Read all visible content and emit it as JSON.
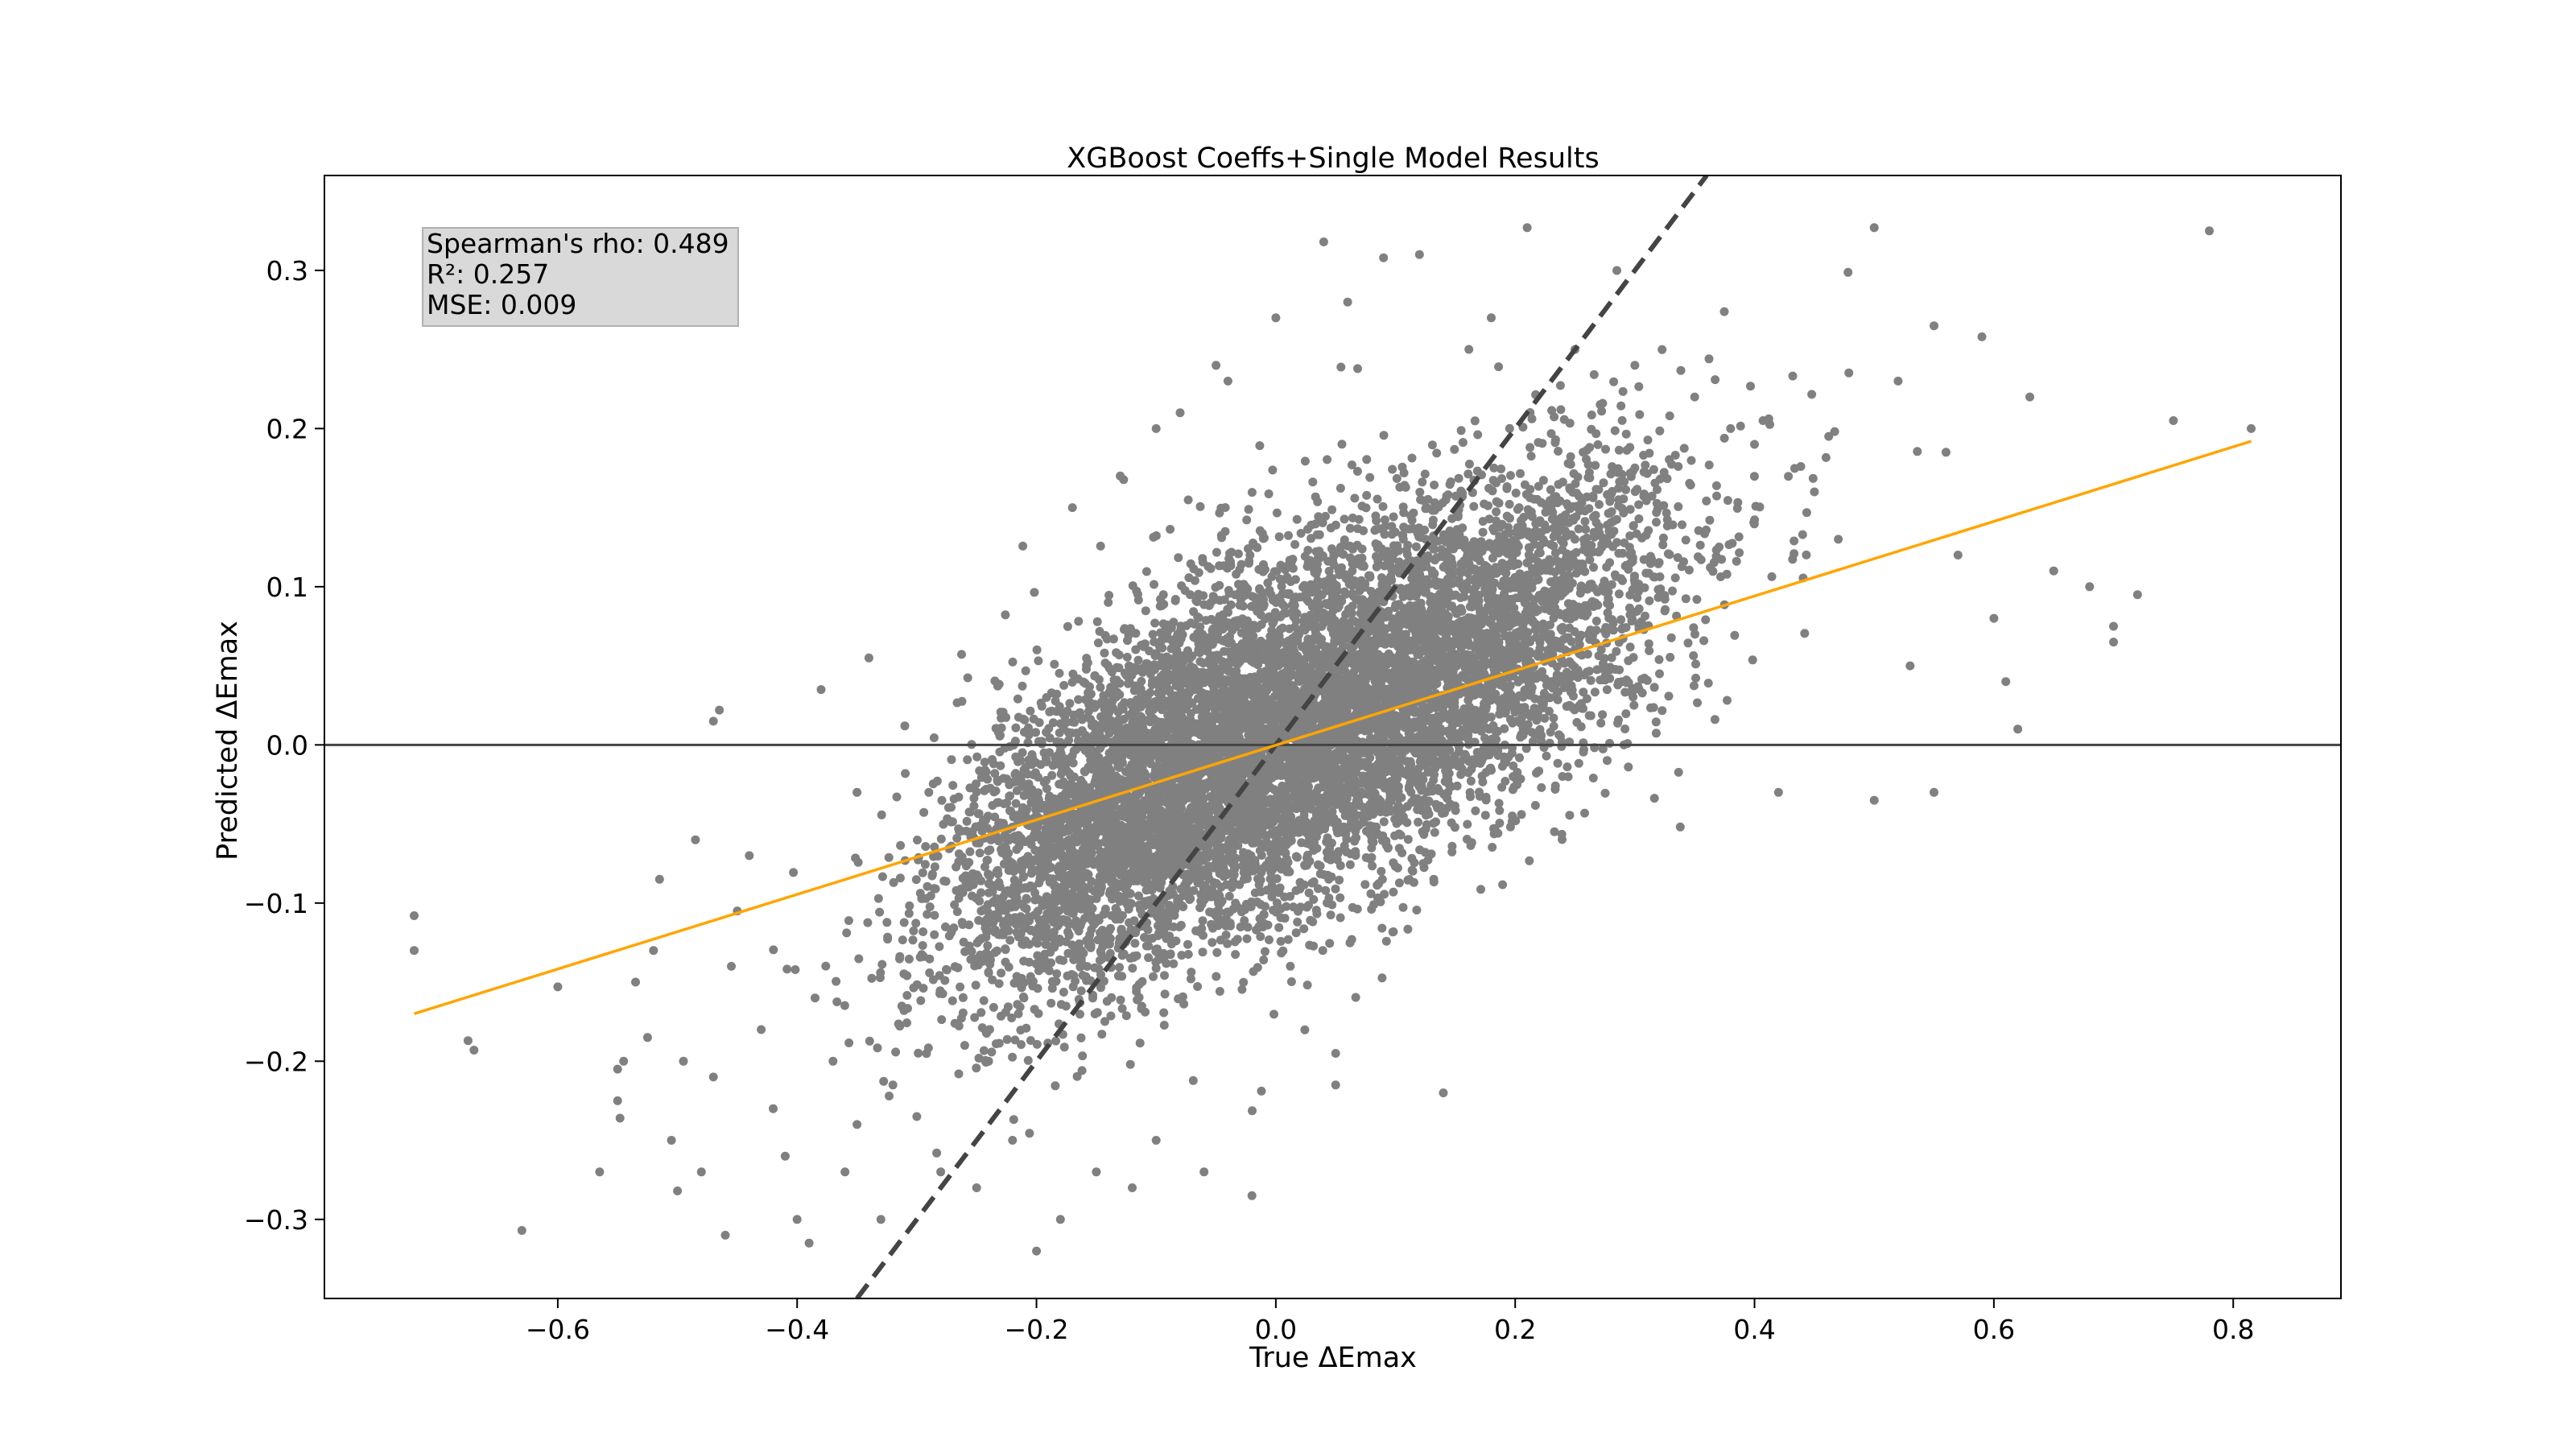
{
  "chart_data": {
    "type": "scatter",
    "title": "XGBoost Coeffs+Single Model Results",
    "xlabel": "True ΔEmax",
    "ylabel": "Predicted ΔEmax",
    "xlim": [
      -0.795,
      0.89
    ],
    "ylim": [
      -0.35,
      0.36
    ],
    "xticks": [
      -0.6,
      -0.4,
      -0.2,
      0.0,
      0.2,
      0.4,
      0.6,
      0.8
    ],
    "xtick_labels": [
      "−0.6",
      "−0.4",
      "−0.2",
      "0.0",
      "0.2",
      "0.4",
      "0.6",
      "0.8"
    ],
    "yticks": [
      -0.3,
      -0.2,
      -0.1,
      0.0,
      0.1,
      0.2,
      0.3
    ],
    "ytick_labels": [
      "−0.3",
      "−0.2",
      "−0.1",
      "0.0",
      "0.1",
      "0.2",
      "0.3"
    ],
    "grid": false,
    "point_color": "#808080",
    "stats": {
      "spearman": "Spearman's rho: 0.489",
      "r2": "R²: 0.257",
      "mse": "MSE: 0.009"
    },
    "reference_lines": {
      "identity": {
        "style": "dashed",
        "color": "#444444",
        "slope": 1,
        "intercept": 0
      },
      "zero_line": {
        "color": "#444444",
        "y": 0
      }
    },
    "fit_line": {
      "color": "#ffa500",
      "x": [
        -0.72,
        0.815
      ],
      "y": [
        -0.17,
        0.192
      ]
    },
    "series": [
      {
        "points": [
          [
            -0.72,
            -0.108
          ],
          [
            -0.72,
            -0.13
          ],
          [
            -0.675,
            -0.187
          ],
          [
            -0.67,
            -0.193
          ],
          [
            -0.63,
            -0.307
          ],
          [
            -0.6,
            -0.153
          ],
          [
            -0.565,
            -0.27
          ],
          [
            -0.55,
            -0.205
          ],
          [
            -0.55,
            -0.225
          ],
          [
            -0.548,
            -0.236
          ],
          [
            -0.545,
            -0.2
          ],
          [
            -0.535,
            -0.15
          ],
          [
            -0.525,
            -0.185
          ],
          [
            -0.52,
            -0.13
          ],
          [
            -0.515,
            -0.085
          ],
          [
            -0.505,
            -0.25
          ],
          [
            -0.5,
            -0.282
          ],
          [
            -0.495,
            -0.2
          ],
          [
            -0.485,
            -0.06
          ],
          [
            -0.48,
            -0.27
          ],
          [
            -0.47,
            -0.21
          ],
          [
            -0.47,
            0.015
          ],
          [
            -0.465,
            0.022
          ],
          [
            -0.46,
            -0.31
          ],
          [
            -0.455,
            -0.14
          ],
          [
            -0.45,
            -0.105
          ],
          [
            -0.44,
            -0.07
          ],
          [
            -0.43,
            -0.18
          ],
          [
            -0.42,
            -0.23
          ],
          [
            -0.41,
            -0.26
          ],
          [
            -0.4,
            -0.3
          ],
          [
            -0.39,
            -0.315
          ],
          [
            -0.385,
            -0.16
          ],
          [
            -0.38,
            0.035
          ],
          [
            -0.37,
            -0.2
          ],
          [
            -0.36,
            -0.27
          ],
          [
            -0.35,
            -0.24
          ],
          [
            -0.35,
            -0.03
          ],
          [
            -0.34,
            0.055
          ],
          [
            -0.33,
            -0.3
          ],
          [
            -0.32,
            -0.215
          ],
          [
            -0.31,
            0.012
          ],
          [
            -0.3,
            -0.235
          ],
          [
            -0.29,
            -0.03
          ],
          [
            -0.28,
            -0.27
          ],
          [
            -0.26,
            -0.19
          ],
          [
            -0.25,
            -0.28
          ],
          [
            -0.24,
            -0.2
          ],
          [
            -0.22,
            -0.25
          ],
          [
            -0.2,
            -0.32
          ],
          [
            -0.18,
            -0.3
          ],
          [
            -0.17,
            0.15
          ],
          [
            -0.15,
            -0.27
          ],
          [
            -0.13,
            0.17
          ],
          [
            -0.12,
            -0.28
          ],
          [
            -0.1,
            0.2
          ],
          [
            -0.1,
            -0.25
          ],
          [
            -0.08,
            0.21
          ],
          [
            -0.06,
            -0.27
          ],
          [
            -0.05,
            0.24
          ],
          [
            -0.04,
            0.23
          ],
          [
            -0.02,
            -0.285
          ],
          [
            0.0,
            0.27
          ],
          [
            0.04,
            0.318
          ],
          [
            0.05,
            -0.215
          ],
          [
            0.05,
            -0.195
          ],
          [
            0.06,
            0.28
          ],
          [
            0.09,
            0.308
          ],
          [
            0.12,
            0.31
          ],
          [
            0.14,
            -0.22
          ],
          [
            0.18,
            0.27
          ],
          [
            0.21,
            0.327
          ],
          [
            0.25,
            0.25
          ],
          [
            0.3,
            0.24
          ],
          [
            0.35,
            0.22
          ],
          [
            0.38,
            0.2
          ],
          [
            0.4,
            0.19
          ],
          [
            0.42,
            -0.03
          ],
          [
            0.45,
            0.16
          ],
          [
            0.47,
            0.13
          ],
          [
            0.5,
            0.327
          ],
          [
            0.5,
            -0.035
          ],
          [
            0.52,
            0.23
          ],
          [
            0.53,
            0.05
          ],
          [
            0.55,
            0.265
          ],
          [
            0.55,
            -0.03
          ],
          [
            0.56,
            0.185
          ],
          [
            0.57,
            0.12
          ],
          [
            0.59,
            0.258
          ],
          [
            0.6,
            0.08
          ],
          [
            0.61,
            0.04
          ],
          [
            0.62,
            0.01
          ],
          [
            0.63,
            0.22
          ],
          [
            0.65,
            0.11
          ],
          [
            0.68,
            0.1
          ],
          [
            0.7,
            0.075
          ],
          [
            0.7,
            0.065
          ],
          [
            0.72,
            0.095
          ],
          [
            0.75,
            0.205
          ],
          [
            0.78,
            0.325
          ],
          [
            0.815,
            0.2
          ]
        ],
        "cloud": {
          "count": 9000,
          "slope": 0.4,
          "components": [
            {
              "weight": 0.55,
              "mx": -0.08,
              "my": -0.02,
              "sx": 0.1,
              "sy": 0.055
            },
            {
              "weight": 0.45,
              "mx": 0.12,
              "my": 0.04,
              "sx": 0.11,
              "sy": 0.055
            }
          ]
        }
      }
    ]
  }
}
